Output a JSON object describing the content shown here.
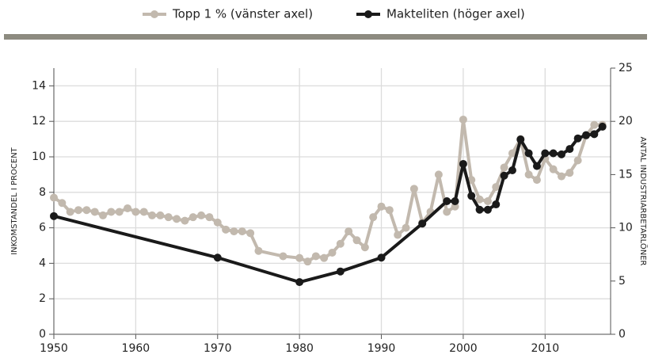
{
  "chart_data": {
    "type": "line",
    "y_label": "INKOMSTANDEL I PROCENT",
    "y2_label": "ANTAL INDUSTRIARBETARLÖNER",
    "xlim": [
      1950,
      2018
    ],
    "xticks": [
      1950,
      1960,
      1970,
      1980,
      1990,
      2000,
      2010
    ],
    "ylim": [
      0,
      15
    ],
    "yticks": [
      0,
      2,
      4,
      6,
      8,
      10,
      12,
      14
    ],
    "y2lim": [
      0,
      25
    ],
    "y2ticks": [
      0,
      5,
      10,
      15,
      20,
      25
    ],
    "grid": true,
    "legend": "top",
    "series": [
      {
        "name": "Topp 1 % (vänster axel)",
        "color": "#c2b9ae",
        "x": [
          1950,
          1951,
          1952,
          1953,
          1954,
          1955,
          1956,
          1957,
          1958,
          1959,
          1960,
          1961,
          1962,
          1963,
          1964,
          1965,
          1966,
          1967,
          1968,
          1969,
          1970,
          1971,
          1972,
          1973,
          1974,
          1975,
          1978,
          1980,
          1981,
          1982,
          1983,
          1984,
          1985,
          1986,
          1987,
          1988,
          1989,
          1990,
          1991,
          1992,
          1993,
          1994,
          1995,
          1996,
          1997,
          1998,
          1999,
          2000,
          2001,
          2002,
          2003,
          2004,
          2005,
          2006,
          2007,
          2008,
          2009,
          2010,
          2011,
          2012,
          2013,
          2014,
          2015,
          2016,
          2017
        ],
        "values": [
          7.7,
          7.4,
          6.9,
          7.0,
          7.0,
          6.9,
          6.7,
          6.9,
          6.9,
          7.1,
          6.9,
          6.9,
          6.7,
          6.7,
          6.6,
          6.5,
          6.4,
          6.6,
          6.7,
          6.6,
          6.3,
          5.9,
          5.8,
          5.8,
          5.7,
          4.7,
          4.4,
          4.3,
          4.1,
          4.4,
          4.3,
          4.6,
          5.1,
          5.8,
          5.3,
          4.9,
          6.6,
          7.2,
          7.0,
          5.6,
          6.0,
          8.2,
          6.3,
          6.9,
          9.0,
          6.9,
          7.2,
          12.1,
          8.7,
          7.6,
          7.5,
          8.3,
          9.4,
          10.2,
          11.0,
          9.0,
          8.7,
          9.9,
          9.3,
          8.9,
          9.1,
          9.8,
          11.2,
          11.8,
          11.8
        ]
      },
      {
        "name": "Makteliten (höger axel)",
        "color": "#1a1a1a",
        "axis": "y2",
        "x": [
          1950,
          1970,
          1980,
          1985,
          1990,
          1995,
          1998,
          1999,
          2000,
          2001,
          2002,
          2003,
          2004,
          2005,
          2006,
          2007,
          2008,
          2009,
          2010,
          2011,
          2012,
          2013,
          2014,
          2015,
          2016,
          2017
        ],
        "values": [
          11.1,
          7.2,
          4.9,
          5.9,
          7.2,
          10.4,
          12.5,
          12.5,
          16.0,
          13.0,
          11.7,
          11.7,
          12.2,
          14.9,
          15.4,
          18.3,
          17.0,
          15.8,
          17.0,
          17.0,
          16.9,
          17.4,
          18.4,
          18.7,
          18.8,
          19.5
        ]
      }
    ]
  }
}
